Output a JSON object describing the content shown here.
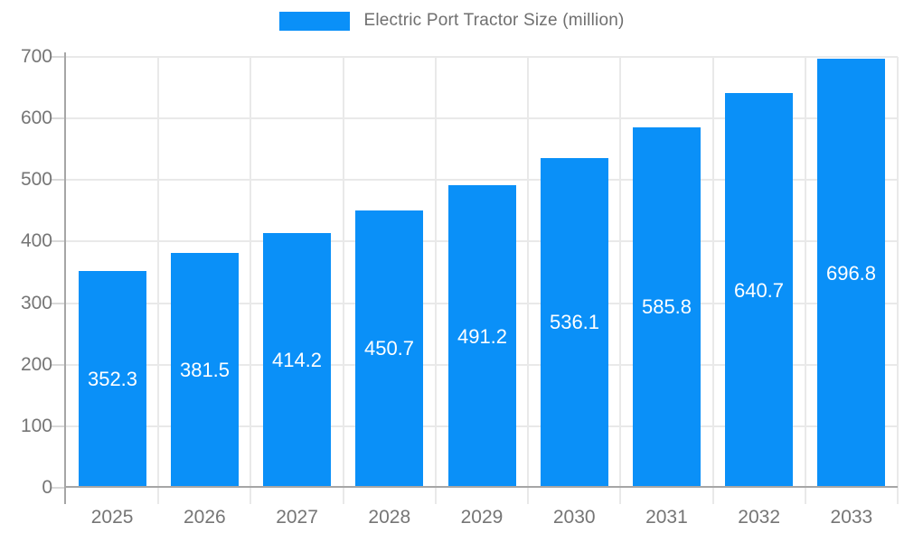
{
  "chart_data": {
    "type": "bar",
    "title": "Electric Port Tractor Size (million)",
    "categories": [
      "2025",
      "2026",
      "2027",
      "2028",
      "2029",
      "2030",
      "2031",
      "2032",
      "2033"
    ],
    "series": [
      {
        "name": "Electric Port Tractor Size (million)",
        "values": [
          352.3,
          381.5,
          414.2,
          450.7,
          491.2,
          536.1,
          585.8,
          640.7,
          696.8
        ]
      }
    ],
    "xlabel": "",
    "ylabel": "",
    "ylim": [
      0,
      700
    ],
    "yticks": [
      0,
      100,
      200,
      300,
      400,
      500,
      600,
      700
    ],
    "grid": true,
    "legend_position": "top-center",
    "value_labels": "inside-center",
    "colors": {
      "bar": "#0a90f8",
      "bar_value_label": "#ffffff",
      "axis_line": "#a6a6a6",
      "gridline": "#e9e9e9",
      "tick": "#d9d9d9",
      "axis_text": "#757575",
      "legend_text": "#6f6f6f",
      "background": "#ffffff"
    }
  }
}
